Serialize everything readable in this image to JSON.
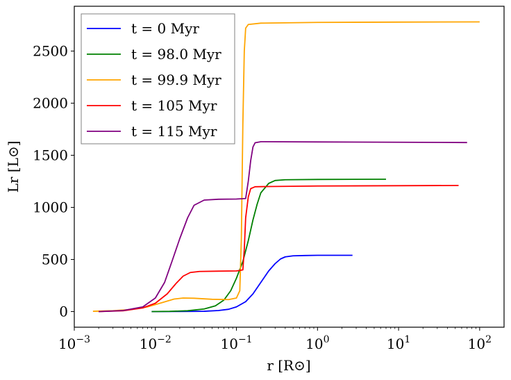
{
  "chart_data": {
    "type": "line",
    "title": "",
    "xlabel": "r [R⊙]",
    "ylabel": "Lr [L⊙]",
    "x_scale": "log",
    "xlim": [
      0.001,
      200
    ],
    "ylim": [
      -150,
      2930
    ],
    "x_ticks": [
      {
        "value": 0.001,
        "base": "10",
        "exp": "−3"
      },
      {
        "value": 0.01,
        "base": "10",
        "exp": "−2"
      },
      {
        "value": 0.1,
        "base": "10",
        "exp": "−1"
      },
      {
        "value": 1,
        "base": "10",
        "exp": "0"
      },
      {
        "value": 10,
        "base": "10",
        "exp": "1"
      },
      {
        "value": 100,
        "base": "10",
        "exp": "2"
      }
    ],
    "y_ticks": [
      {
        "value": 0,
        "label": "0"
      },
      {
        "value": 500,
        "label": "500"
      },
      {
        "value": 1000,
        "label": "1000"
      },
      {
        "value": 1500,
        "label": "1500"
      },
      {
        "value": 2000,
        "label": "2000"
      },
      {
        "value": 2500,
        "label": "2500"
      }
    ],
    "grid": false,
    "legend_position": "top-left",
    "series": [
      {
        "name": "t = 0 Myr",
        "color": "#0000ff",
        "points": [
          [
            0.009,
            0
          ],
          [
            0.02,
            1
          ],
          [
            0.04,
            3
          ],
          [
            0.06,
            10
          ],
          [
            0.08,
            22
          ],
          [
            0.1,
            45
          ],
          [
            0.13,
            95
          ],
          [
            0.16,
            170
          ],
          [
            0.2,
            280
          ],
          [
            0.25,
            390
          ],
          [
            0.3,
            460
          ],
          [
            0.35,
            505
          ],
          [
            0.4,
            525
          ],
          [
            0.5,
            535
          ],
          [
            0.7,
            538
          ],
          [
            1.0,
            540
          ],
          [
            2.7,
            540
          ]
        ]
      },
      {
        "name": "t = 98.0 Myr",
        "color": "#008000",
        "points": [
          [
            0.009,
            0
          ],
          [
            0.015,
            2
          ],
          [
            0.025,
            8
          ],
          [
            0.04,
            25
          ],
          [
            0.055,
            55
          ],
          [
            0.07,
            110
          ],
          [
            0.085,
            200
          ],
          [
            0.1,
            320
          ],
          [
            0.12,
            480
          ],
          [
            0.14,
            680
          ],
          [
            0.16,
            880
          ],
          [
            0.18,
            1030
          ],
          [
            0.2,
            1140
          ],
          [
            0.25,
            1230
          ],
          [
            0.3,
            1258
          ],
          [
            0.4,
            1265
          ],
          [
            1.0,
            1268
          ],
          [
            7.0,
            1270
          ]
        ]
      },
      {
        "name": "t = 99.9 Myr",
        "color": "#ffa500",
        "points": [
          [
            0.0017,
            3
          ],
          [
            0.003,
            8
          ],
          [
            0.005,
            20
          ],
          [
            0.008,
            45
          ],
          [
            0.012,
            85
          ],
          [
            0.017,
            120
          ],
          [
            0.022,
            130
          ],
          [
            0.03,
            128
          ],
          [
            0.05,
            118
          ],
          [
            0.08,
            115
          ],
          [
            0.1,
            130
          ],
          [
            0.11,
            200
          ],
          [
            0.115,
            700
          ],
          [
            0.12,
            1800
          ],
          [
            0.125,
            2500
          ],
          [
            0.13,
            2720
          ],
          [
            0.14,
            2755
          ],
          [
            0.2,
            2768
          ],
          [
            1.0,
            2775
          ],
          [
            10,
            2778
          ],
          [
            100,
            2780
          ]
        ]
      },
      {
        "name": "t = 105 Myr",
        "color": "#ff0000",
        "points": [
          [
            0.002,
            0
          ],
          [
            0.004,
            8
          ],
          [
            0.007,
            35
          ],
          [
            0.01,
            80
          ],
          [
            0.014,
            170
          ],
          [
            0.018,
            270
          ],
          [
            0.022,
            340
          ],
          [
            0.027,
            375
          ],
          [
            0.035,
            385
          ],
          [
            0.06,
            388
          ],
          [
            0.1,
            390
          ],
          [
            0.12,
            400
          ],
          [
            0.125,
            600
          ],
          [
            0.13,
            900
          ],
          [
            0.14,
            1100
          ],
          [
            0.15,
            1180
          ],
          [
            0.17,
            1198
          ],
          [
            0.25,
            1200
          ],
          [
            1.0,
            1205
          ],
          [
            10,
            1208
          ],
          [
            55,
            1210
          ]
        ]
      },
      {
        "name": "t = 115 Myr",
        "color": "#800080",
        "points": [
          [
            0.002,
            0
          ],
          [
            0.004,
            10
          ],
          [
            0.007,
            45
          ],
          [
            0.01,
            130
          ],
          [
            0.013,
            280
          ],
          [
            0.016,
            480
          ],
          [
            0.02,
            700
          ],
          [
            0.025,
            900
          ],
          [
            0.03,
            1020
          ],
          [
            0.04,
            1070
          ],
          [
            0.06,
            1078
          ],
          [
            0.1,
            1080
          ],
          [
            0.13,
            1085
          ],
          [
            0.14,
            1250
          ],
          [
            0.15,
            1450
          ],
          [
            0.16,
            1580
          ],
          [
            0.17,
            1620
          ],
          [
            0.2,
            1630
          ],
          [
            1.0,
            1628
          ],
          [
            10,
            1625
          ],
          [
            70,
            1622
          ]
        ]
      }
    ]
  }
}
